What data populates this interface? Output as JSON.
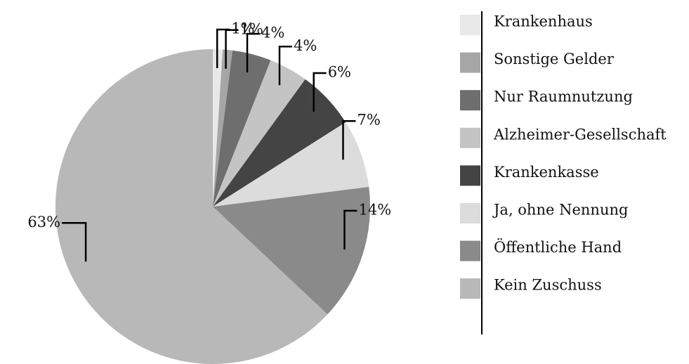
{
  "chart_data": {
    "type": "pie",
    "categories": [
      "Krankenhaus",
      "Sonstige Gelder",
      "Nur Raumnutzung",
      "Alzheimer-Gesellschaft",
      "Krankenkasse",
      "Ja, ohne Nennung",
      "Öffentliche Hand",
      "Kein Zuschuss"
    ],
    "values": [
      1,
      1,
      4,
      4,
      6,
      7,
      14,
      63
    ],
    "value_labels": [
      "1%",
      "1%",
      "4%",
      "4%",
      "6%",
      "7%",
      "14%",
      "63%"
    ],
    "colors": [
      "#e8e8e8",
      "#a6a6a6",
      "#6e6e6e",
      "#c4c4c4",
      "#444444",
      "#dcdcdc",
      "#8a8a8a",
      "#b8b8b8"
    ]
  }
}
